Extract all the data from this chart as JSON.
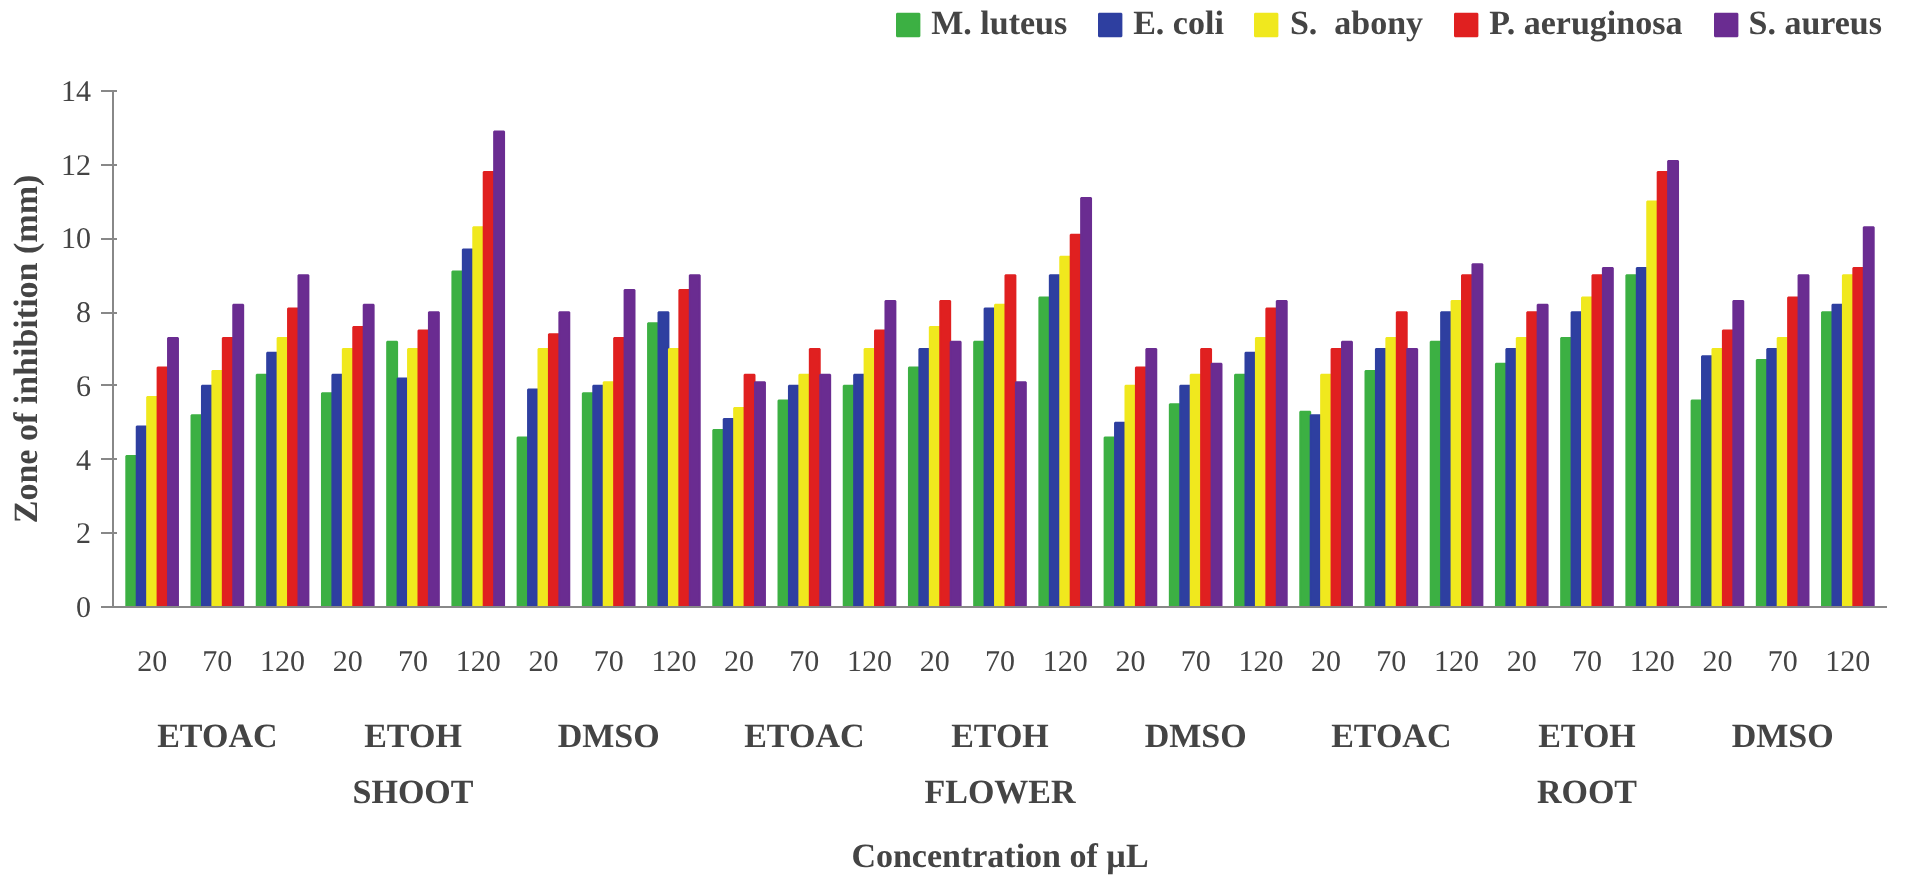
{
  "chart_data": {
    "type": "bar",
    "xlabel": "Concentration of µL",
    "ylabel": "Zone of inhibition (mm)",
    "categories": [
      "20",
      "70",
      "120",
      "20",
      "70",
      "120",
      "20",
      "70",
      "120",
      "20",
      "70",
      "120",
      "20",
      "70",
      "120",
      "20",
      "70",
      "120",
      "20",
      "70",
      "120",
      "20",
      "70",
      "120",
      "20",
      "70",
      "120"
    ],
    "series": [
      {
        "name": "M. luteus",
        "color": "#3cb043",
        "values": [
          4.1,
          5.2,
          6.3,
          5.8,
          7.2,
          9.1,
          4.6,
          5.8,
          7.7,
          4.8,
          5.6,
          6.0,
          6.5,
          7.2,
          8.4,
          4.6,
          5.5,
          6.3,
          5.3,
          6.4,
          7.2,
          6.6,
          7.3,
          9.0,
          5.6,
          6.7,
          8.0
        ]
      },
      {
        "name": "E. coli",
        "color": "#2e3fa0",
        "values": [
          4.9,
          6.0,
          6.9,
          6.3,
          6.2,
          9.7,
          5.9,
          6.0,
          8.0,
          5.1,
          6.0,
          6.3,
          7.0,
          8.1,
          9.0,
          5.0,
          6.0,
          6.9,
          5.2,
          7.0,
          8.0,
          7.0,
          8.0,
          9.2,
          6.8,
          7.0,
          8.2
        ]
      },
      {
        "name": "S.  abony",
        "color": "#f0e81e",
        "values": [
          5.7,
          6.4,
          7.3,
          7.0,
          7.0,
          10.3,
          7.0,
          6.1,
          7.0,
          5.4,
          6.3,
          7.0,
          7.6,
          8.2,
          9.5,
          6.0,
          6.3,
          7.3,
          6.3,
          7.3,
          8.3,
          7.3,
          8.4,
          11.0,
          7.0,
          7.3,
          9.0
        ]
      },
      {
        "name": "P. aeruginosa",
        "color": "#e02020",
        "values": [
          6.5,
          7.3,
          8.1,
          7.6,
          7.5,
          11.8,
          7.4,
          7.3,
          8.6,
          6.3,
          7.0,
          7.5,
          8.3,
          9.0,
          10.1,
          6.5,
          7.0,
          8.1,
          7.0,
          8.0,
          9.0,
          8.0,
          9.0,
          11.8,
          7.5,
          8.4,
          9.2
        ]
      },
      {
        "name": "S. aureus",
        "color": "#6a2c91",
        "values": [
          7.3,
          8.2,
          9.0,
          8.2,
          8.0,
          12.9,
          8.0,
          8.6,
          9.0,
          6.1,
          6.3,
          8.3,
          7.2,
          6.1,
          11.1,
          7.0,
          6.6,
          8.3,
          7.2,
          7.0,
          9.3,
          8.2,
          9.2,
          12.1,
          8.3,
          9.0,
          10.3
        ]
      }
    ],
    "annotations": [
      "ETOAC",
      "ETOH",
      "DMSO",
      "ETOAC",
      "ETOH",
      "DMSO",
      "ETOAC",
      "ETOH",
      "DMSO",
      "SHOOT",
      "FLOWER",
      "ROOT"
    ],
    "ylim": [
      0,
      14
    ],
    "yticks": [
      0,
      2,
      4,
      6,
      8,
      10,
      12,
      14
    ],
    "grid": false,
    "legend": "top"
  }
}
